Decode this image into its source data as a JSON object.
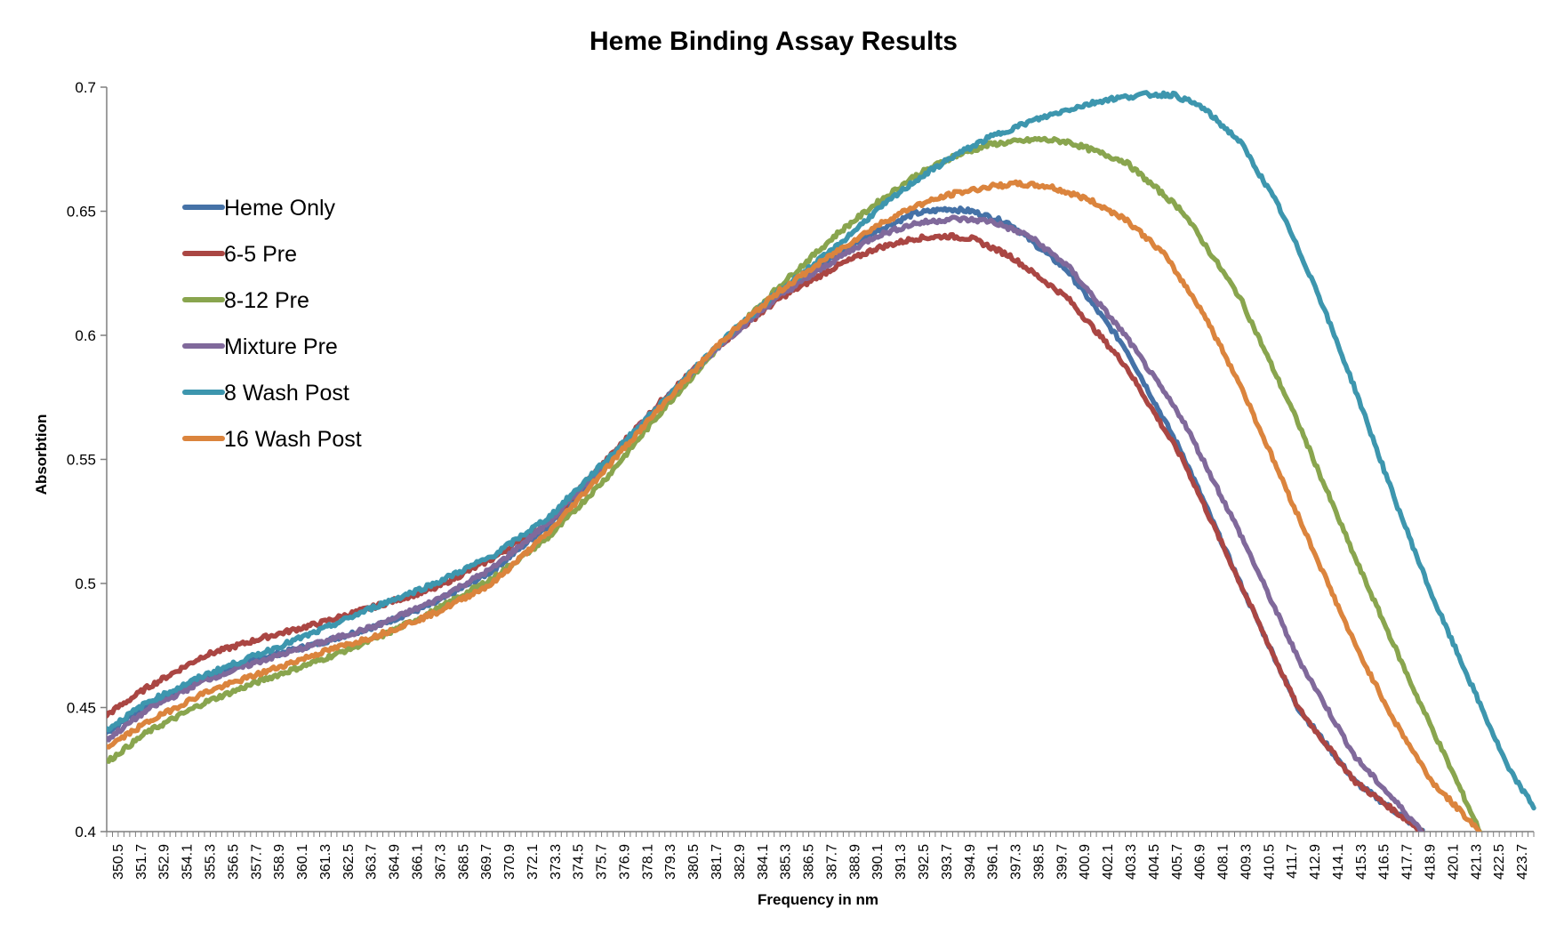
{
  "chart_data": {
    "type": "line",
    "title": "Heme Binding Assay Results",
    "xlabel": "Frequency in nm",
    "ylabel": "Absorbtion",
    "ylim": [
      0.4,
      0.7
    ],
    "xlim": [
      349.9,
      424.3
    ],
    "y_ticks": [
      0.4,
      0.45,
      0.5,
      0.55,
      0.6,
      0.65,
      0.7
    ],
    "y_tick_labels": [
      "0.4",
      "0.45",
      "0.5",
      "0.55",
      "0.6",
      "0.65",
      "0.7"
    ],
    "x_tick_labels": [
      "350.5",
      "351.7",
      "352.9",
      "354.1",
      "355.3",
      "356.5",
      "357.7",
      "358.9",
      "360.1",
      "361.3",
      "362.5",
      "363.7",
      "364.9",
      "366.1",
      "367.3",
      "368.5",
      "369.7",
      "370.9",
      "372.1",
      "373.3",
      "374.5",
      "375.7",
      "376.9",
      "378.1",
      "379.3",
      "380.5",
      "381.7",
      "382.9",
      "384.1",
      "385.3",
      "386.5",
      "387.7",
      "388.9",
      "390.1",
      "391.3",
      "392.5",
      "393.7",
      "394.9",
      "396.1",
      "397.3",
      "398.5",
      "399.7",
      "400.9",
      "402.1",
      "403.3",
      "404.5",
      "405.7",
      "406.9",
      "408.1",
      "409.3",
      "410.5",
      "411.7",
      "412.9",
      "414.1",
      "415.3",
      "416.5",
      "417.7",
      "418.9",
      "420.1",
      "421.3",
      "422.5",
      "423.7"
    ],
    "grid": false,
    "legend_position": "top-left",
    "series": [
      {
        "name": "Heme Only",
        "color": "#4572A7",
        "x": [
          349.9,
          352,
          355,
          358,
          361,
          364,
          367,
          370,
          373,
          376,
          379,
          382,
          385,
          388,
          390,
          392,
          393.7,
          395,
          397,
          400,
          403,
          406,
          409,
          412,
          415,
          418.5
        ],
        "y": [
          0.44,
          0.451,
          0.462,
          0.47,
          0.476,
          0.483,
          0.492,
          0.505,
          0.524,
          0.548,
          0.574,
          0.597,
          0.617,
          0.633,
          0.642,
          0.649,
          0.651,
          0.65,
          0.645,
          0.626,
          0.595,
          0.552,
          0.5,
          0.45,
          0.42,
          0.4
        ]
      },
      {
        "name": "6-5 Pre",
        "color": "#AA4643",
        "x": [
          349.9,
          352,
          355,
          358,
          361,
          364,
          367,
          370,
          373,
          376,
          379,
          382,
          385,
          388,
          390,
          392,
          393.7,
          395,
          397,
          400,
          403,
          406,
          409,
          412,
          415,
          418.5
        ],
        "y": [
          0.447,
          0.458,
          0.471,
          0.478,
          0.484,
          0.491,
          0.498,
          0.51,
          0.525,
          0.55,
          0.575,
          0.597,
          0.615,
          0.628,
          0.635,
          0.639,
          0.64,
          0.639,
          0.632,
          0.615,
          0.588,
          0.55,
          0.5,
          0.45,
          0.42,
          0.4
        ]
      },
      {
        "name": "8-12 Pre",
        "color": "#89A54E",
        "x": [
          349.9,
          352,
          355,
          358,
          361,
          364,
          367,
          370,
          373,
          376,
          379,
          382,
          385,
          388,
          390,
          392,
          394,
          396,
          398.5,
          400,
          403,
          406,
          409,
          412,
          415,
          418,
          420,
          421.5
        ],
        "y": [
          0.428,
          0.44,
          0.452,
          0.461,
          0.469,
          0.478,
          0.489,
          0.502,
          0.519,
          0.543,
          0.571,
          0.597,
          0.62,
          0.641,
          0.653,
          0.664,
          0.672,
          0.677,
          0.679,
          0.678,
          0.67,
          0.65,
          0.615,
          0.565,
          0.51,
          0.458,
          0.425,
          0.4
        ]
      },
      {
        "name": "Mixture Pre",
        "color": "#80699B",
        "x": [
          349.9,
          352,
          355,
          358,
          361,
          364,
          367,
          370,
          373,
          376,
          379,
          382,
          385,
          388,
          390,
          392,
          394,
          396,
          398,
          400,
          403,
          406,
          409,
          412,
          415,
          418.5
        ],
        "y": [
          0.437,
          0.449,
          0.461,
          0.469,
          0.476,
          0.483,
          0.493,
          0.506,
          0.525,
          0.549,
          0.574,
          0.597,
          0.616,
          0.631,
          0.64,
          0.645,
          0.647,
          0.646,
          0.64,
          0.628,
          0.6,
          0.566,
          0.52,
          0.47,
          0.43,
          0.4
        ]
      },
      {
        "name": "8 Wash Post",
        "color": "#3D96AE",
        "x": [
          349.9,
          352,
          355,
          358,
          361,
          364,
          367,
          370,
          373,
          376,
          379,
          382,
          385,
          388,
          390,
          392,
          394,
          396,
          398,
          400,
          402,
          404,
          405.5,
          407,
          409,
          411,
          413,
          415,
          417,
          419,
          421,
          423,
          424.3
        ],
        "y": [
          0.441,
          0.452,
          0.463,
          0.472,
          0.481,
          0.491,
          0.5,
          0.511,
          0.527,
          0.55,
          0.574,
          0.598,
          0.618,
          0.636,
          0.65,
          0.662,
          0.672,
          0.68,
          0.686,
          0.691,
          0.695,
          0.697,
          0.697,
          0.692,
          0.678,
          0.652,
          0.618,
          0.578,
          0.535,
          0.495,
          0.46,
          0.425,
          0.41
        ]
      },
      {
        "name": "16 Wash Post",
        "color": "#DB843D",
        "x": [
          349.9,
          352,
          355,
          358,
          361,
          364,
          367,
          370,
          373,
          376,
          379,
          382,
          385,
          388,
          390,
          392,
          394,
          396,
          397.3,
          399,
          401,
          403,
          405,
          407,
          409,
          411,
          413,
          415,
          417,
          419,
          421.5
        ],
        "y": [
          0.434,
          0.444,
          0.456,
          0.464,
          0.472,
          0.479,
          0.488,
          0.5,
          0.521,
          0.547,
          0.573,
          0.598,
          0.618,
          0.634,
          0.644,
          0.652,
          0.657,
          0.66,
          0.661,
          0.66,
          0.655,
          0.647,
          0.633,
          0.61,
          0.58,
          0.545,
          0.51,
          0.475,
          0.445,
          0.42,
          0.4
        ]
      }
    ]
  }
}
